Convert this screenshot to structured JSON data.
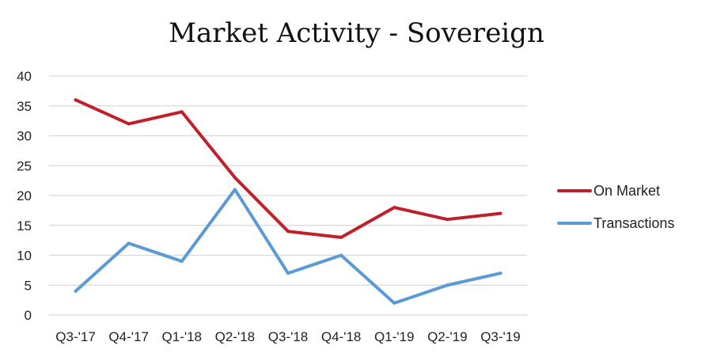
{
  "chart_data": {
    "type": "line",
    "title": "Market Activity - Sovereign",
    "xlabel": "",
    "ylabel": "",
    "categories": [
      "Q3-'17",
      "Q4-'17",
      "Q1-'18",
      "Q2-'18",
      "Q3-'18",
      "Q4-'18",
      "Q1-'19",
      "Q2-'19",
      "Q3-'19"
    ],
    "ylim": [
      0,
      40
    ],
    "yticks": [
      0,
      5,
      10,
      15,
      20,
      25,
      30,
      35,
      40
    ],
    "grid": true,
    "legend": "right",
    "series": [
      {
        "name": "On Market",
        "color": "#c0202a",
        "values": [
          36,
          32,
          34,
          23,
          14,
          13,
          18,
          16,
          17
        ]
      },
      {
        "name": "Transactions",
        "color": "#5b9bd5",
        "values": [
          4,
          12,
          9,
          21,
          7,
          10,
          2,
          5,
          7
        ]
      }
    ]
  }
}
